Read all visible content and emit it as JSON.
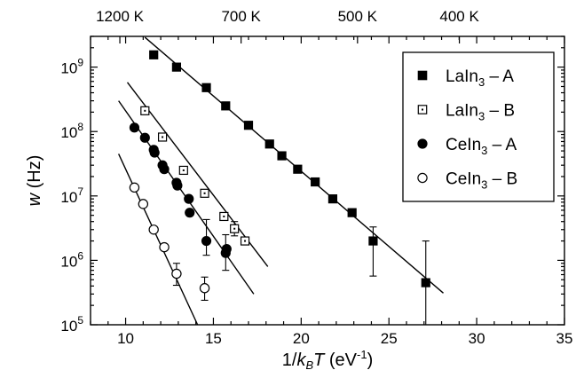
{
  "chart_data": {
    "type": "scatter",
    "xlabel": {
      "prefix": "1/",
      "k": "k",
      "sub": "B",
      "T": "T",
      "unit_open": " (eV",
      "unit_sup": "-1",
      "unit_close": ")"
    },
    "ylabel": {
      "w": "w",
      "unit": " (Hz)"
    },
    "xlim": [
      8,
      35
    ],
    "ylim": [
      100000,
      3000000000
    ],
    "y_scale": "log",
    "x_ticks": [
      10,
      15,
      20,
      25,
      30,
      35
    ],
    "x_tick_labels": [
      "10",
      "15",
      "20",
      "25",
      "30",
      "35"
    ],
    "y_ticks": [
      {
        "value": 100000,
        "base": "10",
        "exp": "5"
      },
      {
        "value": 1000000,
        "base": "10",
        "exp": "6"
      },
      {
        "value": 10000000,
        "base": "10",
        "exp": "7"
      },
      {
        "value": 100000000,
        "base": "10",
        "exp": "8"
      },
      {
        "value": 1000000000,
        "base": "10",
        "exp": "9"
      }
    ],
    "top_axis": [
      {
        "label": "1200 K",
        "T": 1200
      },
      {
        "label": "700 K",
        "T": 700
      },
      {
        "label": "500 K",
        "T": 500
      },
      {
        "label": "400 K",
        "T": 400
      }
    ],
    "kB_eV_per_K": 8.617e-05,
    "legend": {
      "placement": "upper-right"
    },
    "series": [
      {
        "name": {
          "main": "LaIn",
          "sub": "3",
          "suffix": " – A"
        },
        "marker": "filled-square",
        "points": [
          {
            "x": 11.6,
            "y": 1550000000
          },
          {
            "x": 12.9,
            "y": 1000000000
          },
          {
            "x": 14.6,
            "y": 480000000
          },
          {
            "x": 15.7,
            "y": 250000000
          },
          {
            "x": 17.0,
            "y": 125000000
          },
          {
            "x": 18.2,
            "y": 64000000
          },
          {
            "x": 18.9,
            "y": 42000000
          },
          {
            "x": 19.8,
            "y": 26000000
          },
          {
            "x": 20.8,
            "y": 16500000
          },
          {
            "x": 21.8,
            "y": 9000000
          },
          {
            "x": 22.9,
            "y": 5500000
          },
          {
            "x": 24.1,
            "y": 2000000,
            "err_low": 570000,
            "err_high": 3300000
          },
          {
            "x": 27.1,
            "y": 450000,
            "err_low": 100000,
            "err_high": 2000000
          }
        ],
        "fit": {
          "x": [
            11.1,
            28.1
          ],
          "y": [
            2900000000,
            310000
          ]
        }
      },
      {
        "name": {
          "main": "LaIn",
          "sub": "3",
          "suffix": " – B"
        },
        "marker": "open-square-dot",
        "points": [
          {
            "x": 11.1,
            "y": 210000000
          },
          {
            "x": 12.1,
            "y": 82000000
          },
          {
            "x": 13.3,
            "y": 25000000
          },
          {
            "x": 14.5,
            "y": 11000000
          },
          {
            "x": 15.6,
            "y": 4800000
          },
          {
            "x": 16.2,
            "y": 3100000,
            "err_low": 2400000,
            "err_high": 4000000
          },
          {
            "x": 16.8,
            "y": 2000000
          }
        ],
        "fit": {
          "x": [
            10.1,
            18.1
          ],
          "y": [
            580000000,
            800000
          ]
        }
      },
      {
        "name": {
          "main": "CeIn",
          "sub": "3",
          "suffix": " – A"
        },
        "marker": "filled-circle",
        "points": [
          {
            "x": 10.5,
            "y": 115000000
          },
          {
            "x": 11.1,
            "y": 80000000
          },
          {
            "x": 11.6,
            "y": 52000000
          },
          {
            "x": 11.65,
            "y": 47000000
          },
          {
            "x": 12.1,
            "y": 30000000
          },
          {
            "x": 12.2,
            "y": 26000000
          },
          {
            "x": 12.9,
            "y": 16000000
          },
          {
            "x": 12.95,
            "y": 14500000
          },
          {
            "x": 13.6,
            "y": 9000000
          },
          {
            "x": 13.65,
            "y": 5500000
          },
          {
            "x": 14.6,
            "y": 2000000,
            "err_low": 1200000,
            "err_high": 4300000
          },
          {
            "x": 15.7,
            "y": 1300000,
            "err_low": 700000,
            "err_high": 2500000
          },
          {
            "x": 15.75,
            "y": 1500000
          }
        ],
        "fit": {
          "x": [
            9.6,
            17.3
          ],
          "y": [
            300000000,
            300000
          ]
        }
      },
      {
        "name": {
          "main": "CeIn",
          "sub": "3",
          "suffix": " – B"
        },
        "marker": "open-circle",
        "points": [
          {
            "x": 10.5,
            "y": 13500000
          },
          {
            "x": 11.0,
            "y": 7500000
          },
          {
            "x": 11.6,
            "y": 3000000
          },
          {
            "x": 12.2,
            "y": 1600000
          },
          {
            "x": 12.9,
            "y": 620000,
            "err_low": 410000,
            "err_high": 900000
          },
          {
            "x": 14.5,
            "y": 370000,
            "err_low": 240000,
            "err_high": 550000
          }
        ],
        "fit": {
          "x": [
            9.6,
            14.1
          ],
          "y": [
            45000000,
            100000
          ]
        }
      }
    ]
  }
}
